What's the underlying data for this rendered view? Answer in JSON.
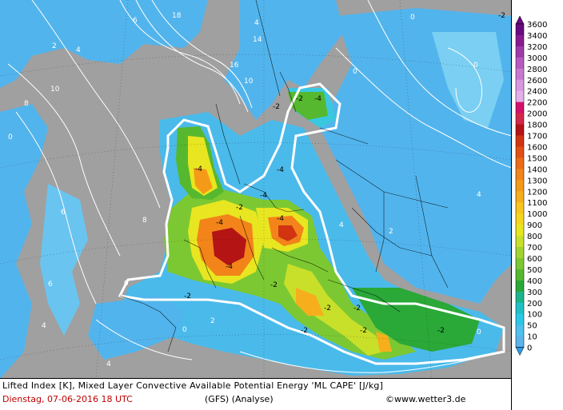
{
  "legend": {
    "levels": [
      "3600",
      "3400",
      "3200",
      "3000",
      "2800",
      "2600",
      "2400",
      "2200",
      "2000",
      "1800",
      "1700",
      "1600",
      "1500",
      "1400",
      "1300",
      "1200",
      "1100",
      "1000",
      "900",
      "800",
      "700",
      "600",
      "500",
      "400",
      "300",
      "200",
      "100",
      "50",
      "10",
      "0"
    ],
    "colors": [
      "#6a0a80",
      "#8a1a90",
      "#a03aa8",
      "#b858c0",
      "#c878d0",
      "#d898e0",
      "#e4b0ec",
      "#d4106a",
      "#d4284a",
      "#b41414",
      "#d23412",
      "#e25016",
      "#ec6a18",
      "#f2841a",
      "#f49a18",
      "#f6ae1c",
      "#f8c41e",
      "#f6d61c",
      "#e8e620",
      "#c8e02a",
      "#a2d430",
      "#7cc832",
      "#56b82e",
      "#2aa838",
      "#1cb48c",
      "#20c0c4",
      "#2ac8e8",
      "#50c0ee",
      "#5cb4ec",
      "#2a9cea"
    ]
  },
  "map": {
    "labels": [
      {
        "t": "18",
        "c": "w"
      },
      {
        "t": "4",
        "c": "w"
      },
      {
        "t": "14",
        "c": "w"
      },
      {
        "t": "16",
        "c": "w"
      },
      {
        "t": "10",
        "c": "w"
      },
      {
        "t": "8",
        "c": "w"
      },
      {
        "t": "6",
        "c": "w"
      },
      {
        "t": "2",
        "c": "w"
      },
      {
        "t": "12",
        "c": "w"
      },
      {
        "t": "0",
        "c": "w"
      },
      {
        "t": "-2",
        "c": "n"
      },
      {
        "t": "-4",
        "c": "n"
      },
      {
        "t": "0",
        "c": "n"
      }
    ]
  },
  "footer": {
    "title": "Lifted Index [K], Mixed Layer Convective Available Potential Energy 'ML CAPE' [J/kg]",
    "date": "Dienstag, 07-06-2016   18 UTC",
    "model": "(GFS)   (Analyse)",
    "copyright": "©www.wetter3.de"
  }
}
